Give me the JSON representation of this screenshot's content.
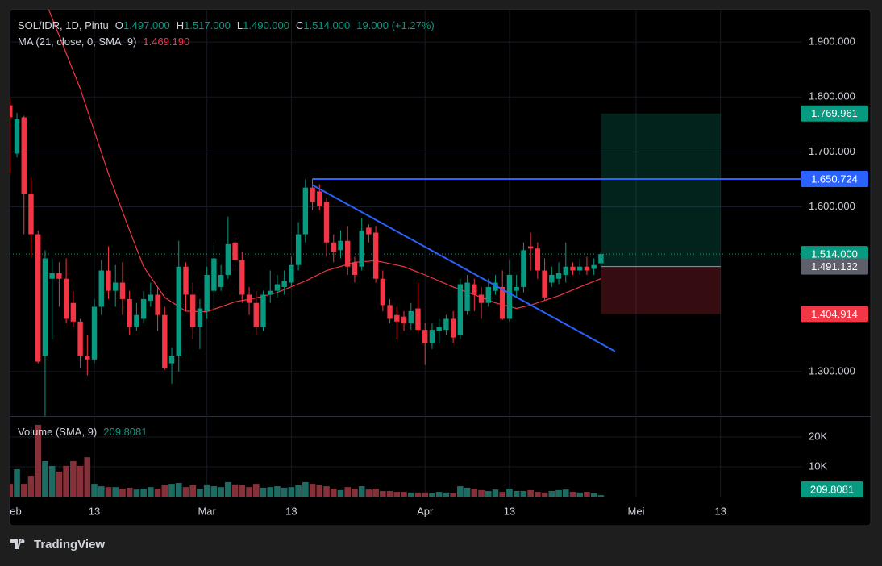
{
  "chart_data": {
    "type": "candlestick",
    "title": "SOL/IDR, 1D, Pintu",
    "ohlc_legend": [
      {
        "key": "O",
        "value": 1497000,
        "label": "1.497.000"
      },
      {
        "key": "H",
        "value": 1517000,
        "label": "1.517.000"
      },
      {
        "key": "L",
        "value": 1490000,
        "label": "1.490.000"
      },
      {
        "key": "C",
        "value": 1514000,
        "label": "1.514.000"
      }
    ],
    "change": "19.000 (+1.27%)",
    "colors": {
      "up": "#089981",
      "down": "#f23645",
      "volume_up": "#1d6b63",
      "volume_down": "#86313a"
    },
    "grid": true,
    "x": [
      0,
      1,
      2,
      3,
      4,
      5,
      6,
      7,
      8,
      9,
      10,
      11,
      12,
      13,
      14,
      15,
      16,
      17,
      18,
      19,
      20,
      21,
      22,
      23,
      24,
      25,
      26,
      27,
      28,
      29,
      30,
      31,
      32,
      33,
      34,
      35,
      36,
      37,
      38,
      39,
      40,
      41,
      42,
      43,
      44,
      45,
      46,
      47,
      48,
      49,
      50,
      51,
      52,
      53,
      54,
      55,
      56,
      57,
      58,
      59,
      60,
      61,
      62,
      63,
      64,
      65,
      66,
      67,
      68,
      69,
      70,
      71,
      72,
      73,
      74,
      75,
      76,
      77,
      78,
      79,
      80,
      81,
      82,
      83,
      84
    ],
    "open": [
      1785000,
      1697000,
      1763000,
      1624000,
      1550000,
      1329000,
      1469000,
      1479000,
      1469000,
      1425000,
      1391000,
      1329000,
      1322000,
      1418000,
      1484000,
      1447000,
      1462000,
      1432000,
      1381000,
      1396000,
      1429000,
      1440000,
      1403000,
      1315000,
      1329000,
      1491000,
      1440000,
      1381000,
      1410000,
      1447000,
      1454000,
      1476000,
      1535000,
      1503000,
      1440000,
      1425000,
      1381000,
      1440000,
      1447000,
      1454000,
      1462000,
      1494000,
      1550000,
      1635000,
      1628000,
      1609000,
      1535000,
      1521000,
      1538000,
      1499000,
      1491000,
      1562000,
      1553000,
      1469000,
      1421000,
      1403000,
      1400000,
      1388000,
      1415000,
      1376000,
      1352000,
      1374000,
      1376000,
      1396000,
      1366000,
      1410000,
      1459000,
      1440000,
      1425000,
      1447000,
      1454000,
      1396000,
      1447000,
      1454000,
      1528000,
      1524000,
      1484000,
      1462000,
      1469000,
      1476000,
      1491000,
      1484000,
      1491000,
      1487000,
      1497000
    ],
    "high": [
      1797000,
      1771000,
      1766000,
      1653000,
      1557000,
      1521000,
      1506000,
      1499000,
      1506000,
      1447000,
      1396000,
      1366000,
      1432000,
      1503000,
      1528000,
      1494000,
      1499000,
      1447000,
      1425000,
      1447000,
      1462000,
      1454000,
      1418000,
      1344000,
      1538000,
      1499000,
      1462000,
      1432000,
      1491000,
      1535000,
      1494000,
      1582000,
      1543000,
      1518000,
      1454000,
      1447000,
      1447000,
      1484000,
      1476000,
      1484000,
      1509000,
      1572000,
      1650000,
      1651000,
      1641000,
      1616000,
      1550000,
      1557000,
      1565000,
      1509000,
      1579000,
      1568000,
      1565000,
      1484000,
      1432000,
      1418000,
      1410000,
      1425000,
      1462000,
      1388000,
      1388000,
      1396000,
      1403000,
      1410000,
      1469000,
      1476000,
      1469000,
      1454000,
      1469000,
      1476000,
      1484000,
      1503000,
      1476000,
      1535000,
      1553000,
      1535000,
      1506000,
      1491000,
      1499000,
      1535000,
      1499000,
      1506000,
      1509000,
      1506000,
      1517000
    ],
    "low": [
      1660000,
      1690000,
      1550000,
      1509000,
      1315000,
      1219000,
      1359000,
      1418000,
      1388000,
      1381000,
      1307000,
      1293000,
      1315000,
      1403000,
      1432000,
      1418000,
      1403000,
      1366000,
      1374000,
      1388000,
      1418000,
      1374000,
      1303000,
      1278000,
      1300000,
      1410000,
      1359000,
      1341000,
      1396000,
      1403000,
      1447000,
      1469000,
      1491000,
      1425000,
      1403000,
      1366000,
      1374000,
      1425000,
      1435000,
      1440000,
      1454000,
      1484000,
      1535000,
      1594000,
      1594000,
      1509000,
      1499000,
      1506000,
      1476000,
      1462000,
      1484000,
      1535000,
      1462000,
      1410000,
      1388000,
      1359000,
      1374000,
      1376000,
      1371000,
      1312000,
      1341000,
      1352000,
      1366000,
      1352000,
      1359000,
      1403000,
      1410000,
      1396000,
      1418000,
      1440000,
      1394000,
      1391000,
      1435000,
      1444000,
      1484000,
      1469000,
      1429000,
      1454000,
      1459000,
      1462000,
      1476000,
      1476000,
      1476000,
      1476000,
      1490000
    ],
    "close": [
      1763000,
      1760000,
      1624000,
      1550000,
      1318000,
      1506000,
      1479000,
      1469000,
      1396000,
      1391000,
      1329000,
      1322000,
      1418000,
      1484000,
      1447000,
      1462000,
      1432000,
      1381000,
      1403000,
      1432000,
      1440000,
      1403000,
      1307000,
      1329000,
      1491000,
      1440000,
      1381000,
      1415000,
      1476000,
      1506000,
      1476000,
      1532000,
      1503000,
      1440000,
      1425000,
      1381000,
      1440000,
      1447000,
      1459000,
      1465000,
      1494000,
      1550000,
      1635000,
      1609000,
      1601000,
      1535000,
      1518000,
      1538000,
      1491000,
      1476000,
      1557000,
      1550000,
      1469000,
      1421000,
      1396000,
      1391000,
      1388000,
      1410000,
      1376000,
      1352000,
      1376000,
      1381000,
      1396000,
      1362000,
      1459000,
      1462000,
      1440000,
      1425000,
      1454000,
      1462000,
      1396000,
      1476000,
      1454000,
      1521000,
      1524000,
      1484000,
      1435000,
      1476000,
      1479000,
      1491000,
      1484000,
      1491000,
      1484000,
      1494000,
      1514000
    ],
    "xlim": [
      0,
      112.6
    ],
    "xticks": [
      {
        "value": 0,
        "label": "eb"
      },
      {
        "value": 12,
        "label": "13"
      },
      {
        "value": 28,
        "label": "Mar"
      },
      {
        "value": 40,
        "label": "13"
      },
      {
        "value": 59,
        "label": "Apr"
      },
      {
        "value": 71,
        "label": "13"
      },
      {
        "value": 89,
        "label": "Mei"
      },
      {
        "value": 101,
        "label": "13"
      }
    ],
    "ylim": [
      1219000,
      1959000
    ],
    "yticks": [
      {
        "value": 1300000,
        "label": "1.300.000"
      },
      {
        "value": 1600000,
        "label": "1.600.000"
      },
      {
        "value": 1700000,
        "label": "1.700.000"
      },
      {
        "value": 1800000,
        "label": "1.800.000"
      },
      {
        "value": 1900000,
        "label": "1.900.000"
      }
    ],
    "last_price": {
      "value": 1514000,
      "label": "1.514.000"
    },
    "ma": {
      "name": "MA (21, close, 0, SMA, 9)",
      "value_label": "1.469.190",
      "color": "#f23645",
      "x": [
        5,
        10,
        14,
        17,
        19,
        22,
        25,
        28,
        32,
        35,
        38,
        42,
        45,
        49,
        52,
        56,
        59,
        63,
        66,
        69,
        72,
        74,
        78,
        81,
        84
      ],
      "values": [
        1976000,
        1815000,
        1660000,
        1557000,
        1491000,
        1435000,
        1410000,
        1409000,
        1427000,
        1434000,
        1444000,
        1465000,
        1484000,
        1499000,
        1502000,
        1491000,
        1476000,
        1454000,
        1440000,
        1425000,
        1415000,
        1421000,
        1438000,
        1454000,
        1469190
      ]
    },
    "volume": {
      "name": "Volume (SMA, 9)",
      "value_label": "209.8081",
      "values": [
        4300,
        9200,
        4300,
        7000,
        24100,
        11900,
        10300,
        8400,
        10300,
        11900,
        10300,
        13200,
        4300,
        3500,
        3200,
        3200,
        2700,
        3000,
        2400,
        2700,
        3200,
        2700,
        3800,
        4300,
        4600,
        3200,
        3800,
        2700,
        4100,
        3500,
        3200,
        4900,
        4100,
        3800,
        3200,
        4300,
        3000,
        3200,
        3500,
        3000,
        3200,
        3800,
        4900,
        4300,
        3800,
        3500,
        2700,
        2200,
        3200,
        2700,
        3500,
        2400,
        2700,
        1900,
        1900,
        1600,
        1600,
        1400,
        1400,
        1400,
        1100,
        1600,
        1400,
        1100,
        3500,
        3000,
        2700,
        2200,
        1900,
        2400,
        1600,
        2700,
        1900,
        1900,
        2200,
        1600,
        1400,
        1900,
        2200,
        2400,
        1600,
        1400,
        1600,
        1100,
        500
      ],
      "ylim": [
        0,
        26500
      ],
      "yticks": [
        {
          "value": 10000,
          "label": "10K"
        },
        {
          "value": 20000,
          "label": "20K"
        }
      ]
    },
    "drawings": {
      "resistance": {
        "x": 43,
        "value": 1650724,
        "label": "1.650.724",
        "color": "#2962ff"
      },
      "trendline": {
        "x": [
          43,
          86
        ],
        "y": [
          1639700,
          1336800
        ],
        "color": "#2962ff"
      },
      "position": {
        "x": [
          84,
          101
        ],
        "target": {
          "value": 1769961,
          "label": "1.769.961"
        },
        "entry": {
          "value": 1491132,
          "label": "1.491.132"
        },
        "stop": {
          "value": 1404914,
          "label": "1.404.914"
        }
      }
    }
  },
  "branding": "TradingView"
}
